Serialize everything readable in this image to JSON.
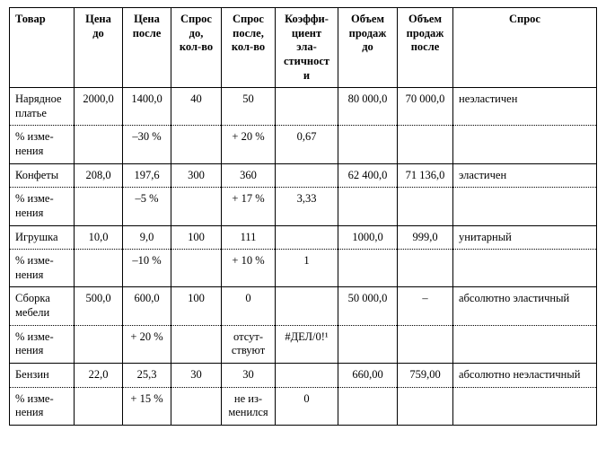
{
  "table": {
    "headers": {
      "tovar": "Товар",
      "price1": "Цена до",
      "price2": "Цена после",
      "spros1": "Спрос до, кол-во",
      "spros2": "Спрос после, кол-во",
      "koef": "Коэффи­циент эла­стичности",
      "vol1": "Объем продаж до",
      "vol2": "Объем продаж после",
      "spros": "Спрос"
    },
    "groups": [
      {
        "row1": {
          "tovar": "Нарядное платье",
          "price1": "2000,0",
          "price2": "1400,0",
          "spros1": "40",
          "spros2": "50",
          "koef": "",
          "vol1": "80 000,0",
          "vol2": "70 000,0",
          "spros": "неэластичен"
        },
        "row2": {
          "tovar": "% изме­нения",
          "price1": "",
          "price2": "–30 %",
          "spros1": "",
          "spros2": "+ 20 %",
          "koef": "0,67",
          "vol1": "",
          "vol2": "",
          "spros": ""
        }
      },
      {
        "row1": {
          "tovar": "Конфеты",
          "price1": "208,0",
          "price2": "197,6",
          "spros1": "300",
          "spros2": "360",
          "koef": "",
          "vol1": "62 400,0",
          "vol2": "71 136,0",
          "spros": "эластичен"
        },
        "row2": {
          "tovar": "% изме­нения",
          "price1": "",
          "price2": "–5 %",
          "spros1": "",
          "spros2": "+ 17 %",
          "koef": "3,33",
          "vol1": "",
          "vol2": "",
          "spros": ""
        }
      },
      {
        "row1": {
          "tovar": "Игрушка",
          "price1": "10,0",
          "price2": "9,0",
          "spros1": "100",
          "spros2": "111",
          "koef": "",
          "vol1": "1000,0",
          "vol2": "999,0",
          "spros": "унитарный"
        },
        "row2": {
          "tovar": "% изме­нения",
          "price1": "",
          "price2": "–10 %",
          "spros1": "",
          "spros2": "+ 10 %",
          "koef": "1",
          "vol1": "",
          "vol2": "",
          "spros": ""
        }
      },
      {
        "row1": {
          "tovar": "Сборка мебели",
          "price1": "500,0",
          "price2": "600,0",
          "spros1": "100",
          "spros2": "0",
          "koef": "",
          "vol1": "50 000,0",
          "vol2": "–",
          "spros": "абсолютно эластичный"
        },
        "row2": {
          "tovar": "% изме­нения",
          "price1": "",
          "price2": "+ 20 %",
          "spros1": "",
          "spros2": "отсут­ствуют",
          "koef": "#ДЕЛ/0!¹",
          "vol1": "",
          "vol2": "",
          "spros": ""
        }
      },
      {
        "row1": {
          "tovar": "Бензин",
          "price1": "22,0",
          "price2": "25,3",
          "spros1": "30",
          "spros2": "30",
          "koef": "",
          "vol1": "660,00",
          "vol2": "759,00",
          "spros": "абсолютно не­эластичный"
        },
        "row2": {
          "tovar": "% изме­нения",
          "price1": "",
          "price2": "+ 15 %",
          "spros1": "",
          "spros2": "не из­менил­ся",
          "koef": "0",
          "vol1": "",
          "vol2": "",
          "spros": ""
        }
      }
    ],
    "style": {
      "font_family": "Times New Roman",
      "header_fontsize_pt": 9,
      "body_fontsize_pt": 9,
      "border_color": "#000000",
      "dotted_separator": true,
      "background_color": "#ffffff",
      "text_color": "#000000",
      "col_align": {
        "tovar": "left",
        "price1": "center",
        "price2": "center",
        "spros1": "center",
        "spros2": "center",
        "koef": "center",
        "vol1": "center",
        "vol2": "center",
        "spros": "left"
      }
    }
  }
}
